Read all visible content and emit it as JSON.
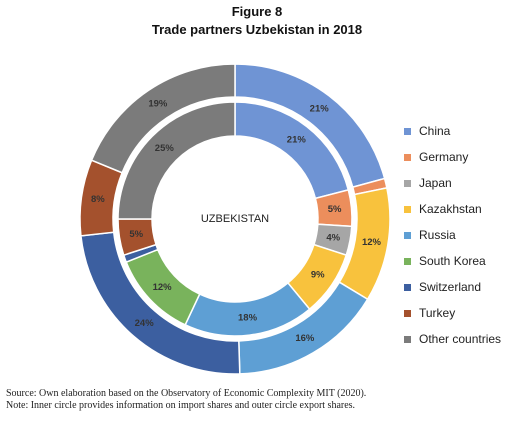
{
  "figure_label": "Figure 8",
  "title": "Trade partners Uzbekistan in 2018",
  "chart_data": {
    "type": "pie",
    "center_label": "UZBEKISTAN",
    "categories": [
      "China",
      "Germany",
      "Japan",
      "Kazakhstan",
      "Russia",
      "South Korea",
      "Switzerland",
      "Turkey",
      "Other countries"
    ],
    "colors": [
      "#6f94d4",
      "#ec8e5c",
      "#a6a6a6",
      "#f8c23d",
      "#5e9fd4",
      "#79b35c",
      "#3c5fa0",
      "#a4512d",
      "#7b7b7b"
    ],
    "series": [
      {
        "name": "Import shares",
        "ring": "inner",
        "values": [
          21,
          5,
          4,
          9,
          18,
          12,
          1,
          5,
          25
        ],
        "labels": [
          "21%",
          "5%",
          "4%",
          "9%",
          "18%",
          "12%",
          "",
          "5%",
          "25%"
        ]
      },
      {
        "name": "Export shares",
        "ring": "outer",
        "values": [
          21,
          1,
          0,
          12,
          16,
          0,
          24,
          8,
          19
        ],
        "labels": [
          "21%",
          "",
          "",
          "12%",
          "16%",
          "",
          "24%",
          "8%",
          "19%"
        ]
      }
    ],
    "legend_position": "right"
  },
  "notes": [
    "Source: Own elaboration based on the Observatory of Economic Complexity MIT (2020).",
    "Note: Inner circle provides information on import shares and outer circle export shares."
  ]
}
